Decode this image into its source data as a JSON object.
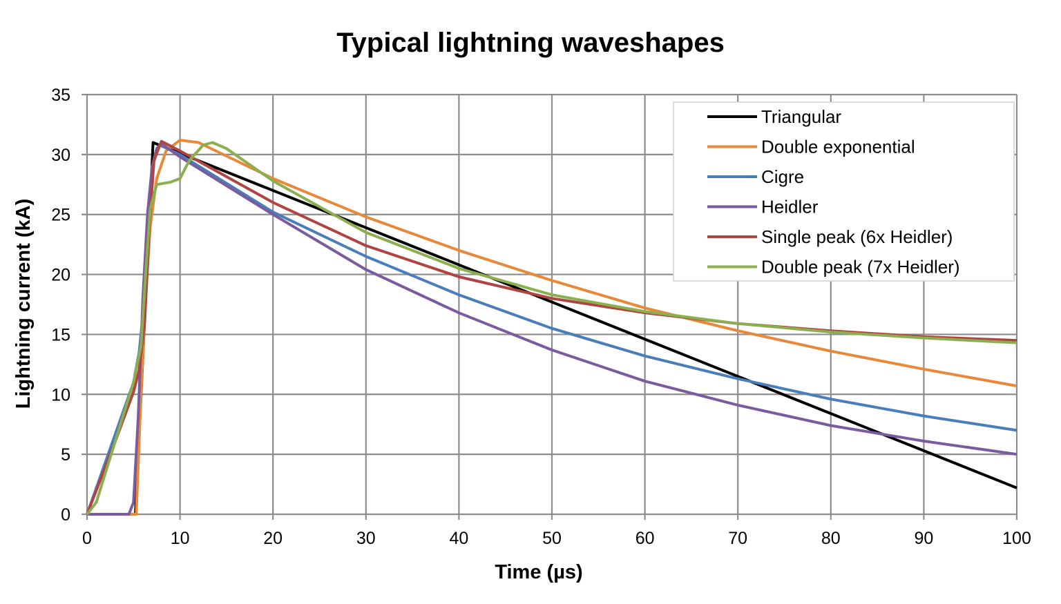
{
  "chart_data": {
    "type": "line",
    "title": "Typical lightning waveshapes",
    "xlabel": "Time (µs)",
    "ylabel": "Lightning current (kA)",
    "xlim": [
      0,
      100
    ],
    "ylim": [
      0,
      35
    ],
    "xticks": [
      0,
      10,
      20,
      30,
      40,
      50,
      60,
      70,
      80,
      90,
      100
    ],
    "yticks": [
      0,
      5,
      10,
      15,
      20,
      25,
      30,
      35
    ],
    "grid": true,
    "legend_position": "top-right",
    "series": [
      {
        "name": "Triangular",
        "color": "#000000",
        "x": [
          0,
          5.2,
          7.1,
          100
        ],
        "y": [
          0,
          0,
          31,
          2.2
        ]
      },
      {
        "name": "Double exponential",
        "color": "#E8893A",
        "x": [
          0,
          5.3,
          5.8,
          6.3,
          6.8,
          7.5,
          8.5,
          10,
          12,
          20,
          30,
          40,
          50,
          60,
          70,
          80,
          90,
          100
        ],
        "y": [
          0,
          0,
          10,
          18,
          24,
          28,
          30.3,
          31.2,
          31,
          28,
          24.8,
          22,
          19.5,
          17.2,
          15.3,
          13.6,
          12.1,
          10.7
        ]
      },
      {
        "name": "Cigre",
        "color": "#4A7EBB",
        "x": [
          0,
          1,
          2,
          3,
          4,
          5,
          5.6,
          6,
          6.5,
          7,
          7.8,
          10,
          20,
          30,
          40,
          50,
          60,
          70,
          80,
          90,
          100
        ],
        "y": [
          0,
          2.2,
          4.4,
          6.6,
          8.8,
          11,
          13.5,
          16.5,
          24,
          29,
          30.8,
          30,
          25.2,
          21.5,
          18.3,
          15.5,
          13.2,
          11.3,
          9.6,
          8.2,
          7.0
        ]
      },
      {
        "name": "Heidler",
        "color": "#7A5C9E",
        "x": [
          0,
          4.5,
          5,
          5.5,
          6,
          6.5,
          7,
          7.5,
          8,
          10,
          20,
          30,
          40,
          50,
          60,
          70,
          80,
          90,
          100
        ],
        "y": [
          0,
          0,
          1,
          8,
          18,
          25,
          29,
          30.5,
          30.9,
          29.8,
          25,
          20.4,
          16.8,
          13.7,
          11.1,
          9.1,
          7.4,
          6.1,
          5.0
        ]
      },
      {
        "name": "Single peak (6x Heidler)",
        "color": "#B04442",
        "x": [
          0,
          1,
          2,
          3,
          4,
          5,
          5.6,
          6.2,
          6.7,
          7.2,
          8,
          10,
          20,
          30,
          40,
          50,
          60,
          70,
          80,
          90,
          100
        ],
        "y": [
          0,
          2,
          4,
          6,
          8.1,
          10.2,
          12,
          16,
          24,
          29.5,
          31.1,
          30.3,
          26,
          22.4,
          19.8,
          18,
          16.8,
          15.9,
          15.3,
          14.8,
          14.5
        ]
      },
      {
        "name": "Double peak (7x Heidler)",
        "color": "#8BAF4E",
        "x": [
          0,
          1,
          2,
          3,
          4,
          5,
          5.8,
          6.3,
          6.8,
          7.5,
          9,
          10,
          11,
          12.5,
          13.5,
          15,
          20,
          30,
          40,
          50,
          60,
          70,
          80,
          90,
          100
        ],
        "y": [
          0,
          1,
          3.5,
          6,
          8.5,
          11,
          14,
          20,
          25.5,
          27.5,
          27.7,
          28,
          29.5,
          30.8,
          31,
          30.5,
          27.8,
          23.5,
          20.5,
          18.3,
          16.9,
          15.9,
          15.2,
          14.7,
          14.3
        ]
      }
    ]
  }
}
